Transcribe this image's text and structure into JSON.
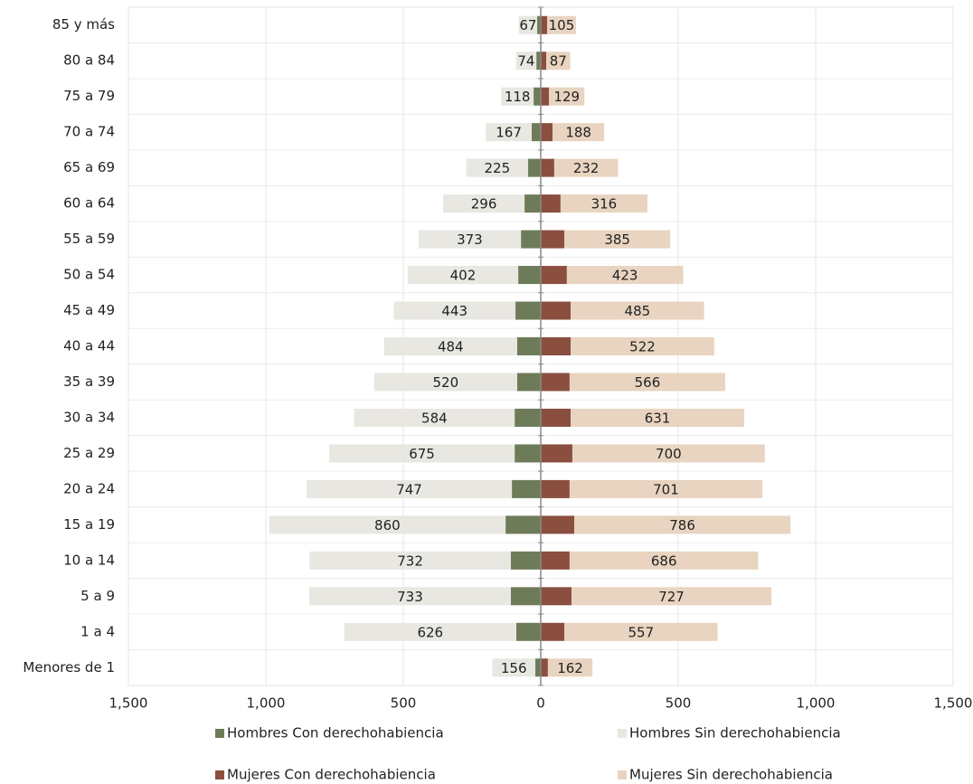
{
  "chart_data": {
    "type": "bar",
    "orientation": "horizontal",
    "stacked": true,
    "grid": true,
    "legend": "bottom",
    "categories": [
      "85 y más",
      "80 a 84",
      "75 a 79",
      "70 a 74",
      "65 a 69",
      "60 a 64",
      "55 a 59",
      "50 a 54",
      "45 a 49",
      "40 a 44",
      "35 a 39",
      "30 a 34",
      "25 a 29",
      "20 a 24",
      "15 a 19",
      "10 a 14",
      "5 a 9",
      "1 a 4",
      "Menores de 1"
    ],
    "xlim": [
      -1500,
      1500
    ],
    "xticks": [
      {
        "value": -1500,
        "label": "1,500"
      },
      {
        "value": -1000,
        "label": "1,000"
      },
      {
        "value": -500,
        "label": "500"
      },
      0,
      500,
      {
        "value": 1000,
        "label": "1,000"
      },
      {
        "value": 1500,
        "label": "1,500"
      }
    ],
    "series": [
      {
        "name": "Hombres Con derechohabiencia",
        "color": "#6e7b58",
        "values": [
          -13,
          -16,
          -26,
          -33,
          -46,
          -59,
          -72,
          -82,
          -92,
          -86,
          -86,
          -95,
          -95,
          -105,
          -128,
          -109,
          -109,
          -89,
          -20
        ]
      },
      {
        "name": "Hombres Sin derechohabiencia",
        "color": "#e8e7e1",
        "values": [
          -67,
          -74,
          -118,
          -167,
          -225,
          -296,
          -373,
          -402,
          -443,
          -484,
          -520,
          -584,
          -675,
          -747,
          -860,
          -732,
          -733,
          -626,
          -156
        ],
        "value_labels": [
          "67",
          "74",
          "118",
          "167",
          "225",
          "296",
          "373",
          "402",
          "443",
          "484",
          "520",
          "584",
          "675",
          "747",
          "860",
          "732",
          "733",
          "626",
          "156"
        ]
      },
      {
        "name": "Mujeres Con derechohabiencia",
        "color": "#8a4f3f",
        "values": [
          23,
          20,
          30,
          43,
          49,
          72,
          86,
          95,
          109,
          109,
          105,
          109,
          115,
          105,
          122,
          105,
          112,
          86,
          26
        ]
      },
      {
        "name": "Mujeres Sin derechohabiencia",
        "color": "#e8d4c0",
        "values": [
          105,
          87,
          129,
          188,
          232,
          316,
          385,
          423,
          485,
          522,
          566,
          631,
          700,
          701,
          786,
          686,
          727,
          557,
          162
        ],
        "value_labels": [
          "105",
          "87",
          "129",
          "188",
          "232",
          "316",
          "385",
          "423",
          "485",
          "522",
          "566",
          "631",
          "700",
          "701",
          "786",
          "686",
          "727",
          "557",
          "162"
        ]
      }
    ]
  }
}
